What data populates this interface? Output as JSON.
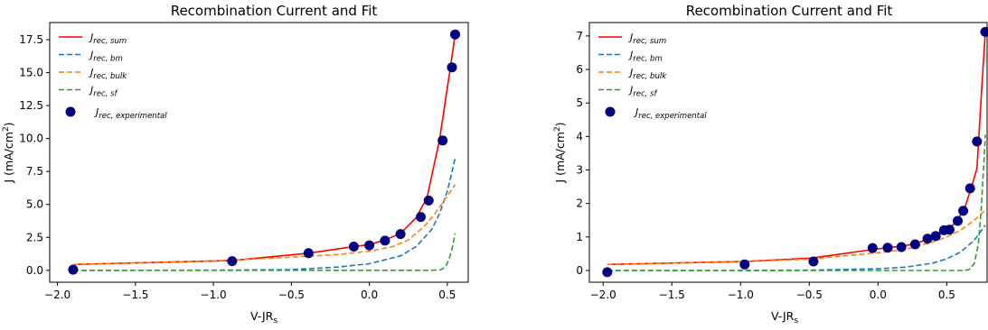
{
  "chart_data": [
    {
      "type": "line",
      "title": "Recombination Current and Fit",
      "xlabel_main": "V-JR",
      "xlabel_sub": "s",
      "ylabel_main": "J (mA/cm",
      "ylabel_sup": "2",
      "ylabel_end": ")",
      "xlim": [
        -2.05,
        0.64
      ],
      "ylim": [
        -0.9,
        18.8
      ],
      "xticks": [
        {
          "v": -2.0,
          "label": "−2.0"
        },
        {
          "v": -1.5,
          "label": "−1.5"
        },
        {
          "v": -1.0,
          "label": "−1.0"
        },
        {
          "v": -0.5,
          "label": "−0.5"
        },
        {
          "v": 0.0,
          "label": "0.0"
        },
        {
          "v": 0.5,
          "label": "0.5"
        }
      ],
      "yticks": [
        {
          "v": 0.0,
          "label": "0.0"
        },
        {
          "v": 2.5,
          "label": "2.5"
        },
        {
          "v": 5.0,
          "label": "5.0"
        },
        {
          "v": 7.5,
          "label": "7.5"
        },
        {
          "v": 10.0,
          "label": "10.0"
        },
        {
          "v": 12.5,
          "label": "12.5"
        },
        {
          "v": 15.0,
          "label": "15.0"
        },
        {
          "v": 17.5,
          "label": "17.5"
        }
      ],
      "legend_position": "upper-left",
      "series": [
        {
          "name_main": "J",
          "name_sub": "rec, sum",
          "color": "#ff0000",
          "style": "solid",
          "x": [
            -1.9,
            -0.88,
            -0.39,
            -0.1,
            0.0,
            0.1,
            0.2,
            0.3,
            0.37,
            0.45,
            0.52,
            0.55
          ],
          "y": [
            0.45,
            0.75,
            1.3,
            1.8,
            1.95,
            2.3,
            2.8,
            4.0,
            5.5,
            9.9,
            15.4,
            17.9
          ]
        },
        {
          "name_main": "J",
          "name_sub": "rec, bm",
          "color": "#1f77b4",
          "style": "dashed",
          "x": [
            -1.9,
            -1.0,
            -0.5,
            -0.2,
            0.0,
            0.2,
            0.3,
            0.4,
            0.45,
            0.5,
            0.55
          ],
          "y": [
            0.0,
            0.01,
            0.06,
            0.25,
            0.5,
            1.1,
            1.8,
            3.1,
            4.3,
            6.0,
            8.5
          ]
        },
        {
          "name_main": "J",
          "name_sub": "rec, bulk",
          "color": "#ff7f0e",
          "style": "dashed",
          "x": [
            -1.9,
            -1.0,
            -0.5,
            -0.2,
            0.0,
            0.15,
            0.25,
            0.35,
            0.42,
            0.48,
            0.55
          ],
          "y": [
            0.45,
            0.7,
            1.0,
            1.2,
            1.45,
            1.8,
            2.3,
            3.3,
            4.3,
            5.3,
            6.5
          ]
        },
        {
          "name_main": "J",
          "name_sub": "rec, sf",
          "color": "#2ca02c",
          "style": "dashed",
          "x": [
            -1.9,
            0.0,
            0.4,
            0.46,
            0.49,
            0.51,
            0.53,
            0.55
          ],
          "y": [
            0.0,
            0.0,
            0.0,
            0.05,
            0.3,
            0.8,
            1.6,
            2.8
          ]
        }
      ],
      "points": {
        "name_main": "J",
        "name_sub": "rec, experimental",
        "color": "#000080",
        "x": [
          -1.9,
          -0.88,
          -0.39,
          -0.1,
          0.0,
          0.1,
          0.2,
          0.33,
          0.38,
          0.47,
          0.53,
          0.55
        ],
        "y": [
          0.05,
          0.7,
          1.3,
          1.8,
          1.9,
          2.25,
          2.75,
          4.05,
          5.3,
          9.85,
          15.4,
          17.9
        ]
      }
    },
    {
      "type": "line",
      "title": "Recombination Current and Fit",
      "xlabel_main": "V-JR",
      "xlabel_sub": "s",
      "ylabel_main": "J (mA/cm",
      "ylabel_sup": "2",
      "ylabel_end": ")",
      "xlim": [
        -2.1,
        0.8
      ],
      "ylim": [
        -0.35,
        7.4
      ],
      "xticks": [
        {
          "v": -2.0,
          "label": "−2.0"
        },
        {
          "v": -1.5,
          "label": "−1.5"
        },
        {
          "v": -1.0,
          "label": "−1.0"
        },
        {
          "v": -0.5,
          "label": "−0.5"
        },
        {
          "v": 0.0,
          "label": "0.0"
        },
        {
          "v": 0.5,
          "label": "0.5"
        }
      ],
      "yticks": [
        {
          "v": 0,
          "label": "0"
        },
        {
          "v": 1,
          "label": "1"
        },
        {
          "v": 2,
          "label": "2"
        },
        {
          "v": 3,
          "label": "3"
        },
        {
          "v": 4,
          "label": "4"
        },
        {
          "v": 5,
          "label": "5"
        },
        {
          "v": 6,
          "label": "6"
        },
        {
          "v": 7,
          "label": "7"
        }
      ],
      "legend_position": "upper-left",
      "series": [
        {
          "name_main": "J",
          "name_sub": "rec, sum",
          "color": "#ff0000",
          "style": "solid",
          "x": [
            -1.97,
            -0.97,
            -0.48,
            -0.05,
            0.07,
            0.17,
            0.27,
            0.36,
            0.42,
            0.5,
            0.57,
            0.63,
            0.68,
            0.72,
            0.76,
            0.78
          ],
          "y": [
            0.18,
            0.27,
            0.37,
            0.62,
            0.68,
            0.72,
            0.8,
            0.93,
            1.05,
            1.2,
            1.45,
            1.85,
            2.5,
            3.05,
            5.8,
            7.1
          ]
        },
        {
          "name_main": "J",
          "name_sub": "rec, bm",
          "color": "#1f77b4",
          "style": "dashed",
          "x": [
            -1.97,
            -1.0,
            -0.5,
            0.0,
            0.2,
            0.4,
            0.5,
            0.6,
            0.7,
            0.78
          ],
          "y": [
            0.0,
            0.0,
            0.01,
            0.05,
            0.1,
            0.22,
            0.35,
            0.55,
            0.9,
            1.35
          ]
        },
        {
          "name_main": "J",
          "name_sub": "rec, bulk",
          "color": "#ff7f0e",
          "style": "dashed",
          "x": [
            -1.97,
            -1.0,
            -0.5,
            0.0,
            0.2,
            0.4,
            0.5,
            0.6,
            0.7,
            0.78
          ],
          "y": [
            0.18,
            0.26,
            0.34,
            0.53,
            0.63,
            0.85,
            1.0,
            1.2,
            1.5,
            1.8
          ]
        },
        {
          "name_main": "J",
          "name_sub": "rec, sf",
          "color": "#2ca02c",
          "style": "dashed",
          "x": [
            -1.97,
            0.0,
            0.6,
            0.66,
            0.7,
            0.73,
            0.75,
            0.77,
            0.78
          ],
          "y": [
            0.0,
            0.0,
            0.0,
            0.02,
            0.2,
            0.8,
            1.8,
            3.2,
            4.05
          ]
        }
      ],
      "points": {
        "name_main": "J",
        "name_sub": "rec, experimental",
        "color": "#000080",
        "x": [
          -1.97,
          -0.97,
          -0.47,
          -0.04,
          0.07,
          0.17,
          0.27,
          0.36,
          0.42,
          0.48,
          0.52,
          0.58,
          0.62,
          0.67,
          0.72,
          0.78
        ],
        "y": [
          -0.05,
          0.18,
          0.27,
          0.67,
          0.68,
          0.7,
          0.78,
          0.95,
          1.03,
          1.2,
          1.22,
          1.48,
          1.78,
          2.45,
          3.85,
          7.12
        ]
      }
    }
  ]
}
